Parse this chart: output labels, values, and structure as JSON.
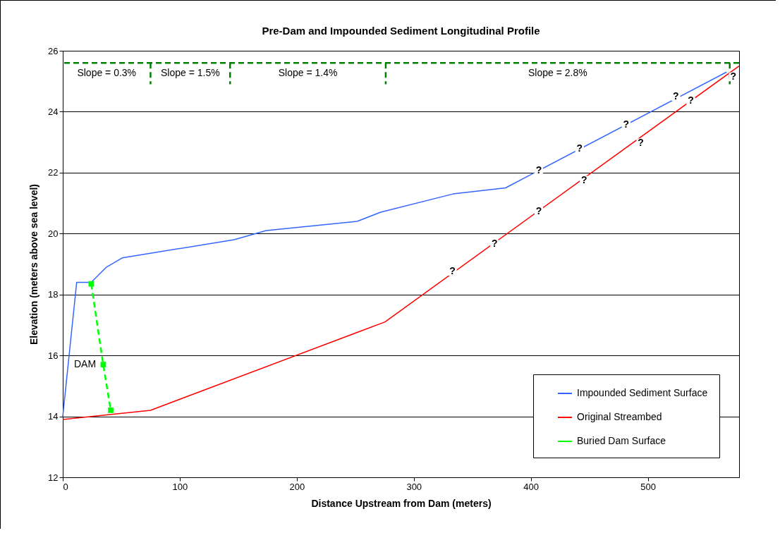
{
  "chart_data": {
    "type": "line",
    "title": "Pre-Dam and Impounded Sediment Longitudinal Profile",
    "xlabel": "Distance Upstream from Dam (meters)",
    "ylabel": "Elevation (meters above sea level)",
    "xlim": [
      0,
      578
    ],
    "xticks": [
      0,
      100,
      200,
      300,
      400,
      500
    ],
    "ylim": [
      12,
      26
    ],
    "yticks": [
      12,
      14,
      16,
      18,
      20,
      22,
      24,
      26
    ],
    "grid": "y",
    "legend": "bottom right",
    "series": [
      {
        "name": "Impounded Sediment Surface",
        "color": "#3366ff",
        "x": [
          0,
          11.9,
          24.3,
          37.4,
          50.8,
          146.4,
          174,
          251.5,
          271.6,
          333.5,
          378.4,
          567.3
        ],
        "values": [
          14.0,
          18.4,
          18.4,
          18.9,
          19.2,
          19.8,
          20.1,
          20.4,
          20.7,
          21.3,
          21.5,
          25.3
        ]
      },
      {
        "name": "Original Streambed",
        "color": "#ff0000",
        "x": [
          0,
          75,
          275.4,
          578
        ],
        "values": [
          13.9,
          14.2,
          17.1,
          25.5
        ]
      },
      {
        "name": "Buried Dam Surface",
        "color": "#00ff00",
        "line_style": "dashed",
        "marker": "square",
        "x": [
          24.3,
          34.6,
          41
        ],
        "values": [
          18.35,
          15.7,
          14.2
        ]
      },
      {
        "color": "#008000",
        "line_style": "dashed",
        "x": [
          75,
          75
        ],
        "values": [
          25.6,
          24.9
        ]
      },
      {
        "color": "#008000",
        "line_style": "dashed",
        "x": [
          143,
          143
        ],
        "values": [
          25.6,
          24.9
        ]
      },
      {
        "color": "#008000",
        "line_style": "dashed",
        "x": [
          276,
          276
        ],
        "values": [
          25.6,
          24.9
        ]
      },
      {
        "color": "#008000",
        "line_style": "dashed",
        "x": [
          570,
          570
        ],
        "values": [
          25.6,
          24.9
        ]
      }
    ],
    "ref_lines": [
      {
        "axis": "y",
        "value": 25.6,
        "color": "#008000",
        "line_style": "dashed"
      }
    ],
    "annotations": [
      "Slope = 0.3%",
      "Slope = 1.5%",
      "Slope = 1.4%",
      "Slope = 2.8%",
      "DAM",
      {
        "text": "?",
        "x": 406.8,
        "y": 22.06
      },
      {
        "text": "?",
        "x": 441.7,
        "y": 22.79
      },
      {
        "text": "?",
        "x": 481.5,
        "y": 23.57
      },
      {
        "text": "?",
        "x": 524,
        "y": 24.5
      },
      {
        "text": "?",
        "x": 573,
        "y": 25.15
      },
      {
        "text": "?",
        "x": 536.7,
        "y": 24.35
      },
      {
        "text": "?",
        "x": 494,
        "y": 22.98
      },
      {
        "text": "?",
        "x": 445.6,
        "y": 21.75
      },
      {
        "text": "?",
        "x": 406.8,
        "y": 20.72
      },
      {
        "text": "?",
        "x": 369,
        "y": 19.65
      },
      {
        "text": "?",
        "x": 333,
        "y": 18.76
      }
    ]
  }
}
